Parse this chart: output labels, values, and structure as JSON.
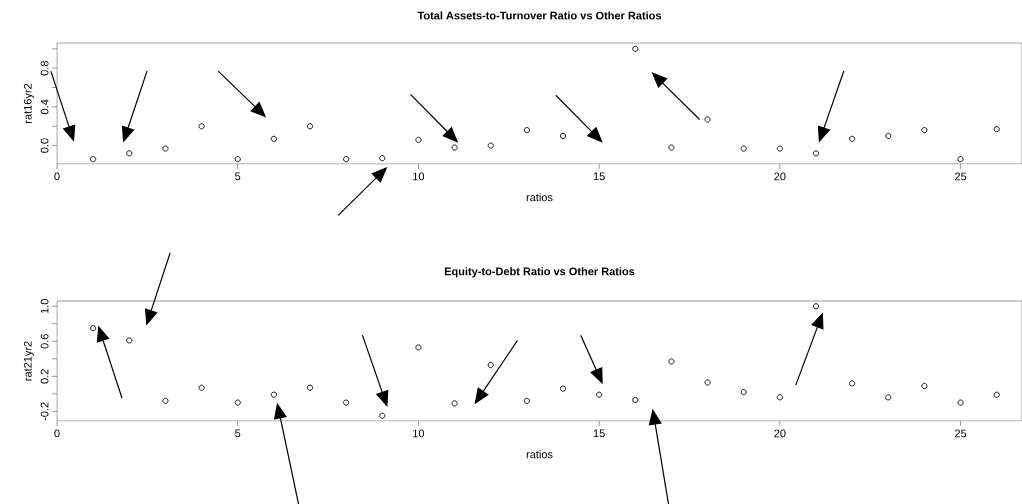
{
  "chart_data": [
    {
      "type": "scatter",
      "title": "Total Assets-to-Turnover Ratio vs Other Ratios",
      "xlabel": "ratios",
      "ylabel": "rat16yr2",
      "marker": "circle",
      "x": [
        1,
        2,
        3,
        4,
        5,
        6,
        7,
        8,
        9,
        10,
        11,
        12,
        13,
        14,
        15,
        16,
        17,
        18,
        19,
        20,
        21,
        22,
        23,
        24,
        25,
        26
      ],
      "series": [
        {
          "color": "#000000",
          "values": [
            -0.14,
            -0.08,
            -0.03,
            0.2,
            -0.14,
            0.07,
            0.2,
            -0.14,
            -0.13,
            0.06,
            -0.02,
            0.0,
            0.16,
            0.1,
            null,
            1.0,
            -0.02,
            0.27,
            -0.03,
            -0.03,
            -0.08,
            0.07,
            0.1,
            0.16,
            -0.14,
            0.17
          ]
        }
      ],
      "xlim": [
        0,
        26.7
      ],
      "ylim": [
        -0.19,
        1.06
      ],
      "xticks": [
        0,
        5,
        10,
        15,
        20,
        25
      ],
      "yticks": [
        {
          "value": 0,
          "label": "0.0"
        },
        {
          "value": 0.2,
          "label": null
        },
        0.4,
        {
          "value": 0.6,
          "label": null
        },
        0.8,
        {
          "value": 1,
          "label": null
        }
      ]
    },
    {
      "type": "scatter",
      "title": "Equity-to-Debt Ratio vs Other Ratios",
      "xlabel": "ratios",
      "ylabel": "rat21yr2",
      "marker": "circle",
      "x": [
        1,
        2,
        3,
        4,
        5,
        6,
        7,
        8,
        9,
        10,
        11,
        12,
        13,
        14,
        15,
        16,
        17,
        18,
        19,
        20,
        21,
        22,
        23,
        24,
        25,
        26
      ],
      "series": [
        {
          "color": "#000000",
          "values": [
            0.75,
            0.61,
            -0.08,
            0.07,
            -0.1,
            -0.01,
            0.07,
            -0.1,
            -0.25,
            0.53,
            -0.11,
            0.33,
            -0.08,
            0.06,
            -0.01,
            -0.07,
            0.37,
            0.13,
            0.02,
            -0.04,
            1.0,
            0.12,
            -0.04,
            0.09,
            -0.1,
            -0.01
          ]
        }
      ],
      "xlim": [
        0,
        26.7
      ],
      "ylim": [
        -0.31,
        1.06
      ],
      "xticks": [
        0,
        5,
        10,
        15,
        20,
        25
      ],
      "yticks": [
        -0.2,
        {
          "value": 0,
          "label": null
        },
        0.2,
        {
          "value": 0.4,
          "label": null
        },
        0.6,
        {
          "value": 0.8,
          "label": null
        },
        {
          "value": 1,
          "label": "1.0"
        }
      ]
    }
  ]
}
